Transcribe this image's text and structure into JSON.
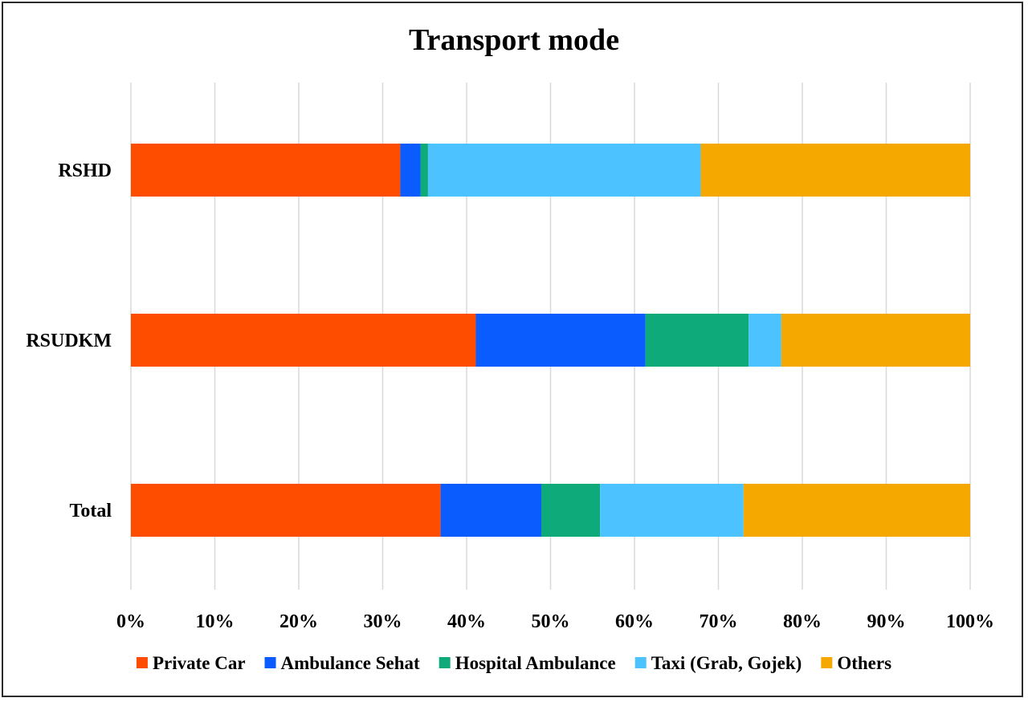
{
  "chart_data": {
    "type": "bar",
    "orientation": "horizontal",
    "stacking": "percent",
    "title": "Transport mode",
    "categories": [
      "RSHD",
      "RSUDKM",
      "Total"
    ],
    "series": [
      {
        "name": "Private Car",
        "color": "#FF4D00",
        "values": [
          32.1,
          41.1,
          36.9
        ]
      },
      {
        "name": "Ambulance Sehat",
        "color": "#0A5CFF",
        "values": [
          2.4,
          20.2,
          12.0
        ]
      },
      {
        "name": "Hospital Ambulance",
        "color": "#0FAA7A",
        "values": [
          0.9,
          12.3,
          7.0
        ]
      },
      {
        "name": "Taxi (Grab, Gojek)",
        "color": "#4CC3FF",
        "values": [
          32.5,
          3.9,
          17.1
        ]
      },
      {
        "name": "Others",
        "color": "#F5A800",
        "values": [
          32.1,
          22.5,
          27.0
        ]
      }
    ],
    "x_ticks": [
      "0%",
      "10%",
      "20%",
      "30%",
      "40%",
      "50%",
      "60%",
      "70%",
      "80%",
      "90%",
      "100%"
    ],
    "xlim": [
      0,
      100
    ],
    "grid": "vertical",
    "legend_position": "bottom"
  }
}
